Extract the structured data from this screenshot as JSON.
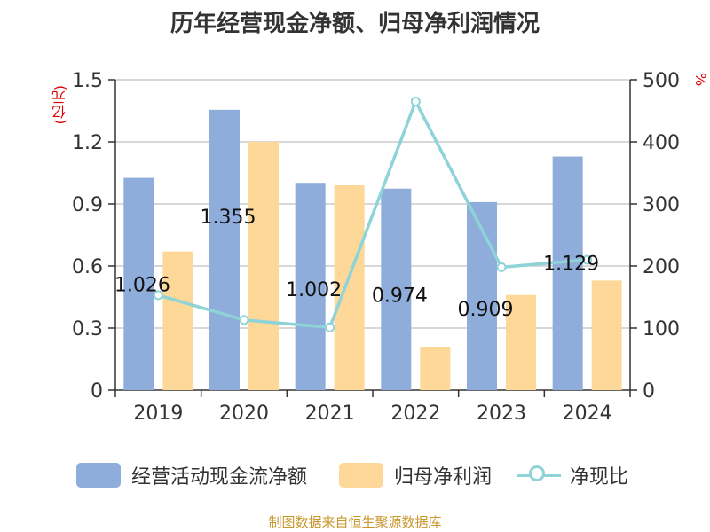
{
  "title": "历年经营现金净额、归母净利润情况",
  "left_unit": "(亿元)",
  "right_unit": "%",
  "source": "制图数据来自恒生聚源数据库",
  "colors": {
    "cashflow": "#8eadda",
    "profit": "#fdd898",
    "ratio": "#8ed3d8",
    "unit": "#e00000",
    "source": "#c8962a"
  },
  "legend": {
    "cashflow": "经营活动现金流净额",
    "profit": "归母净利润",
    "ratio": "净现比"
  },
  "chart_data": {
    "type": "bar",
    "title": "历年经营现金净额、归母净利润情况",
    "categories": [
      "2019",
      "2020",
      "2021",
      "2022",
      "2023",
      "2024"
    ],
    "y_left": {
      "unit": "(亿元)",
      "lim": [
        0,
        1.5
      ],
      "ticks": [
        "0",
        "0.3",
        "0.6",
        "0.9",
        "1.2",
        "1.5"
      ],
      "tick_values": [
        0,
        0.3,
        0.6,
        0.9,
        1.2,
        1.5
      ]
    },
    "y_right": {
      "unit": "%",
      "lim": [
        0,
        500
      ],
      "ticks": [
        "0",
        "100",
        "200",
        "300",
        "400",
        "500"
      ],
      "tick_values": [
        0,
        100,
        200,
        300,
        400,
        500
      ]
    },
    "grid": true,
    "legend_position": "bottom",
    "series": [
      {
        "name": "经营活动现金流净额",
        "type": "bar",
        "axis": "left",
        "values": [
          1.026,
          1.355,
          1.002,
          0.974,
          0.909,
          1.129
        ],
        "labels": [
          "1.026",
          "1.355",
          "1.002",
          "0.974",
          "0.909",
          "1.129"
        ]
      },
      {
        "name": "归母净利润",
        "type": "bar",
        "axis": "left",
        "values": [
          0.67,
          1.2,
          0.99,
          0.21,
          0.46,
          0.53
        ]
      },
      {
        "name": "净现比",
        "type": "line",
        "axis": "right",
        "values": [
          153,
          113,
          101,
          465,
          198,
          210
        ]
      }
    ]
  }
}
